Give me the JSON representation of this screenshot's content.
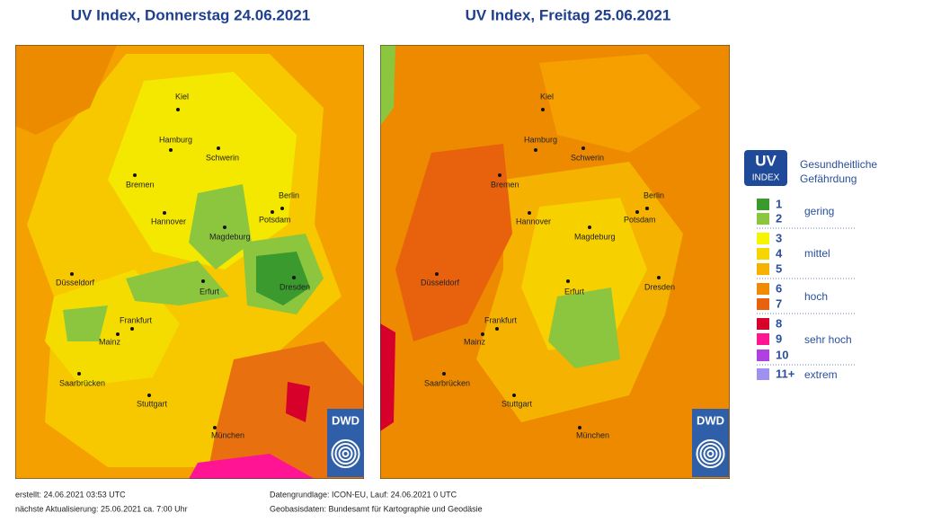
{
  "panels": [
    {
      "title": "UV Index, Donnerstag 24.06.2021",
      "cities": [
        "Kiel",
        "Hamburg",
        "Schwerin",
        "Bremen",
        "Berlin",
        "Potsdam",
        "Hannover",
        "Magdeburg",
        "Düsseldorf",
        "Erfurt",
        "Dresden",
        "Frankfurt",
        "Mainz",
        "Saarbrücken",
        "Stuttgart",
        "München"
      ]
    },
    {
      "title": "UV Index, Freitag 25.06.2021",
      "cities": [
        "Kiel",
        "Hamburg",
        "Schwerin",
        "Bremen",
        "Berlin",
        "Potsdam",
        "Hannover",
        "Magdeburg",
        "Düsseldorf",
        "Erfurt",
        "Dresden",
        "Frankfurt",
        "Mainz",
        "Saarbrücken",
        "Stuttgart",
        "München"
      ]
    }
  ],
  "logo": "DWD",
  "legend": {
    "badge": {
      "title": "UV",
      "subtitle": "INDEX"
    },
    "heading": [
      "Gesundheitliche",
      "Gefährdung"
    ],
    "levels": [
      {
        "label": "1",
        "color": "#3a9a2e"
      },
      {
        "label": "2",
        "color": "#8cc63e"
      },
      {
        "label": "3",
        "color": "#f5f500"
      },
      {
        "label": "4",
        "color": "#f7d600"
      },
      {
        "label": "5",
        "color": "#f7b200"
      },
      {
        "label": "6",
        "color": "#f08a00"
      },
      {
        "label": "7",
        "color": "#e8620e"
      },
      {
        "label": "8",
        "color": "#d6002a"
      },
      {
        "label": "9",
        "color": "#ff1493"
      },
      {
        "label": "10",
        "color": "#b040e0"
      },
      {
        "label": "11+",
        "color": "#a090f0"
      }
    ],
    "groups": [
      "gering",
      "mittel",
      "hoch",
      "sehr hoch",
      "extrem"
    ]
  },
  "footer": {
    "created": "erstellt: 24.06.2021 03:53 UTC",
    "next": "nächste Aktualisierung:  25.06.2021 ca. 7:00 Uhr",
    "source": "Datengrundlage: ICON-EU, Lauf: 24.06.2021 0 UTC",
    "geo": "Geobasisdaten: Bundesamt für Kartographie und Geodäsie"
  }
}
